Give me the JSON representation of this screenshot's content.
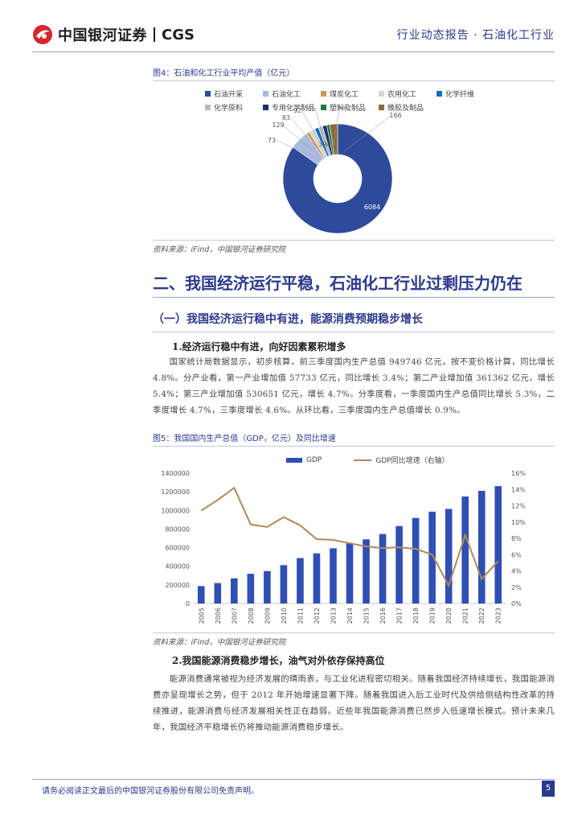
{
  "header": {
    "brand_cn": "中国银河证券",
    "brand_en": "CGS",
    "report_type": "行业动态报告 · 石油化工行业"
  },
  "figure4": {
    "caption": "图4：石油和化工行业平均产值（亿元）",
    "source": "资料来源：iFind，中国银河证券研究院",
    "chart_data": {
      "type": "pie",
      "categories": [
        "石油开采",
        "石油化工",
        "煤炭化工",
        "农用化工",
        "化学纤维",
        "化学原料",
        "专用化学制品",
        "塑料及制品",
        "橡胶及制品"
      ],
      "values": [
        6084,
        398,
        73,
        129,
        83,
        92,
        87,
        66,
        166
      ],
      "colors": [
        "#2e4a9a",
        "#a9b9e0",
        "#c99a5a",
        "#d5d5d5",
        "#0d6ebd",
        "#b9b9b9",
        "#1a2f6e",
        "#1e7a4a",
        "#8a6a3a"
      ]
    }
  },
  "section2": {
    "title": "二、我国经济运行平稳，石油化工行业过剩压力仍在",
    "subsection1": "（一）我国经济运行稳中有进，能源消费预期稳步增长",
    "point1": "1.经济运行稳中有进，向好因素累积增多",
    "para1": "国家统计局数据显示，初步核算，前三季度国内生产总值 949746 亿元，按不变价格计算，同比增长 4.8%。分产业看，第一产业增加值 57733 亿元，同比增长 3.4%；第二产业增加值 361362 亿元，增长 5.4%；第三产业增加值 530651 亿元，增长 4.7%。分季度看，一季度国内生产总值同比增长 5.3%，二季度增长 4.7%，三季度增长 4.6%。从环比看，三季度国内生产总值增长 0.9%。",
    "point2": "2.我国能源消费稳步增长，油气对外依存保持高位",
    "para2": "能源消费通常被视为经济发展的晴雨表，与工业化进程密切相关。随着我国经济持续增长，我国能源消费亦呈现增长之势，但于 2012 年开始增速显著下降。随着我国进入后工业时代及供给侧结构性改革的持续推进，能源消费与经济发展相关性正在趋弱。近些年我国能源消费已然步入低速增长模式。预计未来几年，我国经济平稳增长仍将推动能源消费稳步增长。"
  },
  "figure5": {
    "caption": "图5：我国国内生产总值（GDP，亿元）及同比增速",
    "source": "资料来源：iFind，中国银河证券研究院",
    "chart_data": {
      "type": "bar",
      "categories": [
        "2005",
        "2006",
        "2007",
        "2008",
        "2009",
        "2010",
        "2011",
        "2012",
        "2013",
        "2014",
        "2015",
        "2016",
        "2017",
        "2018",
        "2019",
        "2020",
        "2021",
        "2022",
        "2023"
      ],
      "series": [
        {
          "name": "GDP",
          "type": "bar",
          "axis": "left",
          "color": "#2f4fb5",
          "values": [
            187319,
            219439,
            270092,
            319245,
            348518,
            412119,
            487940,
            538580,
            592963,
            643563,
            688858,
            746395,
            832036,
            919281,
            986515,
            1015986,
            1149237,
            1210207,
            1260582
          ]
        },
        {
          "name": "GDP同比增速（右轴）",
          "type": "line",
          "axis": "right",
          "color": "#b08a5a",
          "values": [
            11.4,
            12.7,
            14.2,
            9.7,
            9.4,
            10.6,
            9.6,
            7.9,
            7.8,
            7.4,
            7.0,
            6.8,
            6.9,
            6.7,
            6.0,
            2.2,
            8.4,
            3.0,
            5.2
          ]
        }
      ],
      "ylim_left": [
        0,
        1400000
      ],
      "yticks_left": [
        "0",
        "200000",
        "400000",
        "600000",
        "800000",
        "1000000",
        "1200000",
        "1400000"
      ],
      "ylim_right": [
        0,
        16
      ],
      "yticks_right": [
        "0%",
        "2%",
        "4%",
        "6%",
        "8%",
        "10%",
        "12%",
        "14%",
        "16%"
      ]
    }
  },
  "footer": {
    "disclaimer": "请务必阅读正文最后的中国银河证券股份有限公司免责声明。",
    "page": "5"
  }
}
